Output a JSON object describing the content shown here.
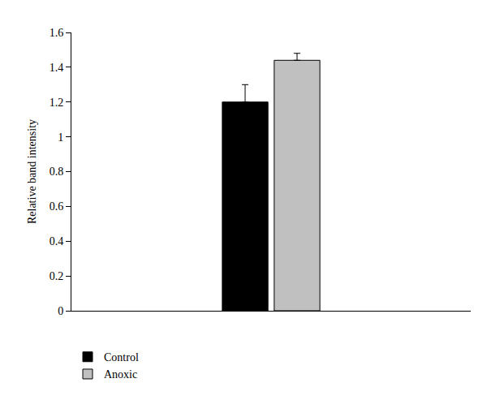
{
  "chart_data": {
    "type": "bar",
    "y_label": "Relative band intensity",
    "categories": [
      null
    ],
    "series": [
      {
        "name": "Control",
        "color": "#000000",
        "values": [
          1.2
        ],
        "errors": [
          0.1
        ]
      },
      {
        "name": "Anoxic",
        "color": "#c0c0c0",
        "values": [
          1.44
        ],
        "errors": [
          0.04
        ]
      }
    ],
    "ylim": [
      0,
      1.6
    ],
    "yticks": [
      0,
      0.2,
      0.4,
      0.6,
      0.8,
      1,
      1.2,
      1.4,
      1.6
    ],
    "grid": false,
    "legend": "bottom left"
  }
}
